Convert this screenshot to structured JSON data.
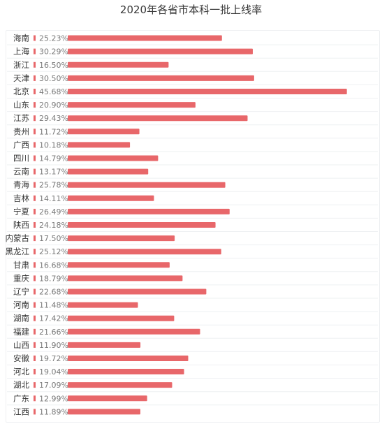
{
  "chart_data": {
    "type": "bar",
    "orientation": "horizontal",
    "title": "2020年各省市本科一批上线率",
    "xlabel": "",
    "ylabel": "",
    "xlim": [
      0,
      50
    ],
    "grid": false,
    "legend": "none",
    "bar_color": "#e8676a",
    "categories": [
      "海南",
      "上海",
      "浙江",
      "天津",
      "北京",
      "山东",
      "江苏",
      "贵州",
      "广西",
      "四川",
      "云南",
      "青海",
      "吉林",
      "宁夏",
      "陕西",
      "内蒙古",
      "黑龙江",
      "甘肃",
      "重庆",
      "辽宁",
      "河南",
      "湖南",
      "福建",
      "山西",
      "安徽",
      "河北",
      "湖北",
      "广东",
      "江西"
    ],
    "values": [
      25.23,
      30.29,
      16.5,
      30.5,
      45.68,
      20.9,
      29.43,
      11.72,
      10.18,
      14.79,
      13.17,
      25.78,
      14.11,
      26.49,
      24.18,
      17.5,
      25.12,
      16.68,
      18.79,
      22.68,
      11.48,
      17.42,
      21.66,
      11.9,
      19.72,
      19.04,
      17.09,
      12.99,
      11.89
    ],
    "value_labels": [
      "25.23%",
      "30.29%",
      "16.50%",
      "30.50%",
      "45.68%",
      "20.90%",
      "29.43%",
      "11.72%",
      "10.18%",
      "14.79%",
      "13.17%",
      "25.78%",
      "14.11%",
      "26.49%",
      "24.18%",
      "17.50%",
      "25.12%",
      "16.68%",
      "18.79%",
      "22.68%",
      "11.48%",
      "17.42%",
      "21.66%",
      "11.90%",
      "19.72%",
      "19.04%",
      "17.09%",
      "12.99%",
      "11.89%"
    ]
  }
}
